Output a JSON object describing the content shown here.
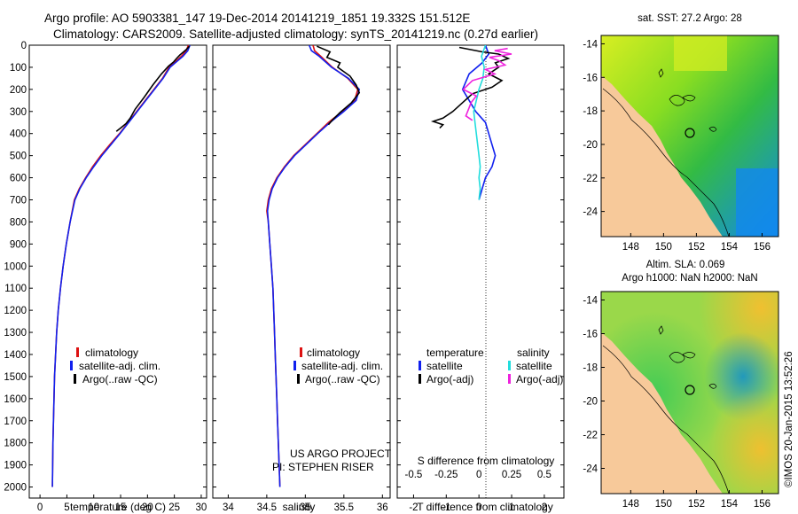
{
  "header": {
    "line1": "Argo profile: AO 5903381_147 19-Dec-2014 20141219_1851 19.332S 151.512E",
    "line2": "Climatology: CARS2009. Satellite-adjusted climatology: synTS_20141219.nc (0.27d earlier)"
  },
  "colors": {
    "climatology": "#dd1111",
    "satellite": "#1020ee",
    "argo": "#000000",
    "salinity_sat": "#22dddd",
    "salinity_argo": "#ee22dd"
  },
  "chart_data": [
    {
      "type": "line",
      "id": "temperature",
      "xlabel": "temperature (deg C)",
      "xlim": [
        -2,
        31
      ],
      "ylim": [
        2050,
        0
      ],
      "xticks": [
        0,
        5,
        10,
        15,
        20,
        25,
        30
      ],
      "yticks": [
        0,
        100,
        200,
        300,
        400,
        500,
        600,
        700,
        800,
        900,
        1000,
        1100,
        1200,
        1300,
        1400,
        1500,
        1600,
        1700,
        1800,
        1900,
        2000
      ],
      "legend": [
        "climatology",
        "satellite-adj. clim.",
        "Argo(..raw -QC)"
      ],
      "series": [
        {
          "name": "climatology",
          "color": "#dd1111",
          "points": [
            [
              27.6,
              0
            ],
            [
              27.2,
              25
            ],
            [
              26.3,
              50
            ],
            [
              25.2,
              75
            ],
            [
              24.0,
              100
            ],
            [
              22.8,
              150
            ],
            [
              21.2,
              200
            ],
            [
              19.6,
              250
            ],
            [
              18.0,
              300
            ],
            [
              16.4,
              350
            ],
            [
              14.8,
              400
            ],
            [
              13.0,
              450
            ],
            [
              11.3,
              500
            ],
            [
              9.8,
              550
            ],
            [
              8.5,
              600
            ],
            [
              7.3,
              650
            ],
            [
              6.4,
              700
            ],
            [
              5.6,
              800
            ],
            [
              4.9,
              900
            ],
            [
              4.3,
              1000
            ],
            [
              3.8,
              1100
            ],
            [
              3.4,
              1200
            ],
            [
              3.1,
              1300
            ],
            [
              2.9,
              1400
            ],
            [
              2.7,
              1500
            ],
            [
              2.6,
              1600
            ],
            [
              2.5,
              1700
            ],
            [
              2.4,
              1800
            ],
            [
              2.35,
              1900
            ],
            [
              2.3,
              2000
            ]
          ]
        },
        {
          "name": "satellite",
          "color": "#1020ee",
          "points": [
            [
              27.9,
              0
            ],
            [
              27.5,
              25
            ],
            [
              26.6,
              50
            ],
            [
              25.4,
              75
            ],
            [
              24.2,
              100
            ],
            [
              22.9,
              150
            ],
            [
              21.3,
              200
            ],
            [
              19.7,
              250
            ],
            [
              18.1,
              300
            ],
            [
              16.5,
              350
            ],
            [
              14.9,
              400
            ],
            [
              13.2,
              450
            ],
            [
              11.5,
              500
            ],
            [
              10.0,
              550
            ],
            [
              8.6,
              600
            ],
            [
              7.4,
              650
            ],
            [
              6.5,
              700
            ],
            [
              5.6,
              800
            ],
            [
              4.9,
              900
            ],
            [
              4.3,
              1000
            ],
            [
              3.8,
              1100
            ],
            [
              3.4,
              1200
            ],
            [
              3.1,
              1300
            ],
            [
              2.9,
              1400
            ],
            [
              2.7,
              1500
            ],
            [
              2.6,
              1600
            ],
            [
              2.5,
              1700
            ],
            [
              2.4,
              1800
            ],
            [
              2.35,
              1900
            ],
            [
              2.3,
              2000
            ]
          ]
        },
        {
          "name": "argo",
          "color": "#000000",
          "points": [
            [
              27.8,
              5
            ],
            [
              27.2,
              20
            ],
            [
              26.0,
              45
            ],
            [
              25.4,
              60
            ],
            [
              24.9,
              75
            ],
            [
              23.9,
              95
            ],
            [
              22.6,
              130
            ],
            [
              21.0,
              180
            ],
            [
              19.4,
              235
            ],
            [
              17.7,
              290
            ],
            [
              16.8,
              330
            ],
            [
              16.0,
              355
            ],
            [
              15.0,
              375
            ],
            [
              14.2,
              390
            ]
          ]
        }
      ]
    },
    {
      "type": "line",
      "id": "salinity",
      "xlabel": "salinity",
      "xlim": [
        33.8,
        36.1
      ],
      "ylim": [
        2050,
        0
      ],
      "xticks": [
        34,
        34.5,
        35,
        35.5,
        36
      ],
      "legend": [
        "climatology",
        "satellite-adj. clim.",
        "Argo(..raw -QC)"
      ],
      "annotation1": "US ARGO PROJECT",
      "annotation2": "PI: STEPHEN RISER",
      "series": [
        {
          "name": "climatology",
          "color": "#dd1111",
          "points": [
            [
              35.1,
              0
            ],
            [
              35.12,
              25
            ],
            [
              35.2,
              50
            ],
            [
              35.35,
              100
            ],
            [
              35.55,
              150
            ],
            [
              35.68,
              200
            ],
            [
              35.64,
              250
            ],
            [
              35.48,
              300
            ],
            [
              35.3,
              350
            ],
            [
              35.15,
              400
            ],
            [
              35.0,
              450
            ],
            [
              34.85,
              500
            ],
            [
              34.73,
              550
            ],
            [
              34.63,
              600
            ],
            [
              34.56,
              650
            ],
            [
              34.52,
              700
            ],
            [
              34.5,
              750
            ],
            [
              34.52,
              800
            ],
            [
              34.54,
              900
            ],
            [
              34.56,
              1000
            ],
            [
              34.58,
              1100
            ],
            [
              34.59,
              1200
            ],
            [
              34.6,
              1300
            ],
            [
              34.61,
              1400
            ],
            [
              34.62,
              1500
            ],
            [
              34.63,
              1600
            ],
            [
              34.64,
              1700
            ],
            [
              34.65,
              1800
            ],
            [
              34.66,
              1900
            ],
            [
              34.67,
              2000
            ]
          ]
        },
        {
          "name": "satellite",
          "color": "#1020ee",
          "points": [
            [
              35.05,
              0
            ],
            [
              35.08,
              25
            ],
            [
              35.18,
              50
            ],
            [
              35.34,
              100
            ],
            [
              35.56,
              150
            ],
            [
              35.7,
              200
            ],
            [
              35.66,
              250
            ],
            [
              35.5,
              300
            ],
            [
              35.32,
              350
            ],
            [
              35.16,
              400
            ],
            [
              35.01,
              450
            ],
            [
              34.86,
              500
            ],
            [
              34.74,
              550
            ],
            [
              34.64,
              600
            ],
            [
              34.57,
              650
            ],
            [
              34.53,
              700
            ],
            [
              34.51,
              750
            ],
            [
              34.52,
              800
            ],
            [
              34.54,
              900
            ],
            [
              34.56,
              1000
            ],
            [
              34.58,
              1100
            ],
            [
              34.59,
              1200
            ],
            [
              34.6,
              1300
            ],
            [
              34.61,
              1400
            ],
            [
              34.62,
              1500
            ],
            [
              34.63,
              1600
            ],
            [
              34.64,
              1700
            ],
            [
              34.65,
              1800
            ],
            [
              34.66,
              1900
            ],
            [
              34.67,
              2000
            ]
          ]
        },
        {
          "name": "argo",
          "color": "#000000",
          "points": [
            [
              35.15,
              5
            ],
            [
              35.32,
              30
            ],
            [
              35.28,
              55
            ],
            [
              35.45,
              80
            ],
            [
              35.42,
              100
            ],
            [
              35.58,
              140
            ],
            [
              35.66,
              180
            ],
            [
              35.7,
              215
            ],
            [
              35.6,
              260
            ],
            [
              35.45,
              305
            ],
            [
              35.36,
              335
            ],
            [
              35.3,
              360
            ]
          ]
        }
      ]
    },
    {
      "type": "line",
      "id": "difference",
      "xlabel": "T difference from climatology",
      "x2label": "S difference from climatology",
      "xlim": [
        -2.5,
        2.6
      ],
      "x2lim": [
        -0.625,
        0.65
      ],
      "ylim": [
        2050,
        0
      ],
      "xticks": [
        -2,
        -1,
        0,
        1,
        2
      ],
      "x2ticks": [
        -0.5,
        -0.25,
        0,
        0.25,
        0.5
      ],
      "legend_temperature": {
        "title": "temperature",
        "items": [
          "satellite",
          "Argo(-adj)"
        ]
      },
      "legend_salinity": {
        "title": "salinity",
        "items": [
          "satellite",
          "Argo(-adj)"
        ]
      },
      "series": [
        {
          "name": "T satellite",
          "color": "#1020ee",
          "points": [
            [
              0.2,
              0
            ],
            [
              0.3,
              40
            ],
            [
              0.1,
              80
            ],
            [
              -0.3,
              130
            ],
            [
              -0.5,
              200
            ],
            [
              -0.3,
              250
            ],
            [
              -0.1,
              300
            ],
            [
              0.2,
              350
            ],
            [
              0.3,
              400
            ],
            [
              0.4,
              450
            ],
            [
              0.5,
              500
            ],
            [
              0.4,
              550
            ],
            [
              0.2,
              600
            ],
            [
              0.1,
              650
            ],
            [
              0.0,
              700
            ]
          ]
        },
        {
          "name": "T argo",
          "color": "#000000",
          "points": [
            [
              -0.6,
              10
            ],
            [
              0.1,
              30
            ],
            [
              0.6,
              40
            ],
            [
              0.9,
              60
            ],
            [
              0.5,
              80
            ],
            [
              0.6,
              100
            ],
            [
              0.3,
              130
            ],
            [
              0.7,
              160
            ],
            [
              0.4,
              190
            ],
            [
              -0.2,
              220
            ],
            [
              -0.5,
              260
            ],
            [
              -0.8,
              300
            ],
            [
              -1.1,
              330
            ],
            [
              -1.4,
              345
            ],
            [
              -1.1,
              360
            ],
            [
              -1.2,
              375
            ]
          ]
        },
        {
          "name": "S satellite",
          "color": "#22dddd",
          "points": [
            [
              0.05,
              0
            ],
            [
              0.02,
              50
            ],
            [
              0.04,
              100
            ],
            [
              0.03,
              150
            ],
            [
              0.0,
              200
            ],
            [
              -0.02,
              250
            ],
            [
              -0.04,
              300
            ],
            [
              -0.03,
              350
            ],
            [
              -0.02,
              400
            ],
            [
              -0.01,
              450
            ],
            [
              0.0,
              500
            ],
            [
              0.01,
              550
            ],
            [
              0.0,
              600
            ],
            [
              0.01,
              650
            ],
            [
              0.0,
              700
            ]
          ]
        },
        {
          "name": "S argo",
          "color": "#ee22dd",
          "points": [
            [
              0.22,
              15
            ],
            [
              0.12,
              25
            ],
            [
              0.25,
              40
            ],
            [
              0.08,
              55
            ],
            [
              0.15,
              70
            ],
            [
              0.2,
              90
            ],
            [
              0.05,
              110
            ],
            [
              0.12,
              130
            ],
            [
              -0.05,
              160
            ],
            [
              -0.12,
              200
            ],
            [
              -0.02,
              230
            ],
            [
              -0.06,
              260
            ],
            [
              -0.08,
              290
            ],
            [
              -0.1,
              320
            ],
            [
              -0.05,
              340
            ]
          ]
        }
      ]
    },
    {
      "type": "heatmap",
      "id": "sst-map",
      "title": "sat. SST: 27.2 Argo: 28",
      "xlim": [
        146.2,
        157
      ],
      "ylim": [
        -25.5,
        -13.5
      ],
      "xticks": [
        148,
        150,
        152,
        154,
        156
      ],
      "yticks": [
        -14,
        -16,
        -18,
        -20,
        -22,
        -24
      ],
      "xtick_labels": [
        "148",
        "150",
        "152",
        "154",
        "156"
      ],
      "ytick_labels": [
        "-14",
        "-16",
        "-18",
        "-20",
        "-22",
        "-24"
      ],
      "argo_position": [
        151.512,
        -19.332
      ]
    },
    {
      "type": "heatmap",
      "id": "sla-map",
      "title": "Altim. SLA: 0.069",
      "subtitle": "Argo h1000: NaN h2000: NaN",
      "xlim": [
        146.2,
        157
      ],
      "ylim": [
        -25.5,
        -13.5
      ],
      "xticks": [
        148,
        150,
        152,
        154,
        156
      ],
      "yticks": [
        -14,
        -16,
        -18,
        -20,
        -22,
        -24
      ],
      "xtick_labels": [
        "148",
        "150",
        "152",
        "154",
        "156"
      ],
      "ytick_labels": [
        "-14",
        "-16",
        "-18",
        "-20",
        "-22",
        "-24"
      ],
      "argo_position": [
        151.512,
        -19.332
      ]
    }
  ],
  "footer": {
    "credit": "©IMOS 20-Jan-2015 13:52:26"
  }
}
